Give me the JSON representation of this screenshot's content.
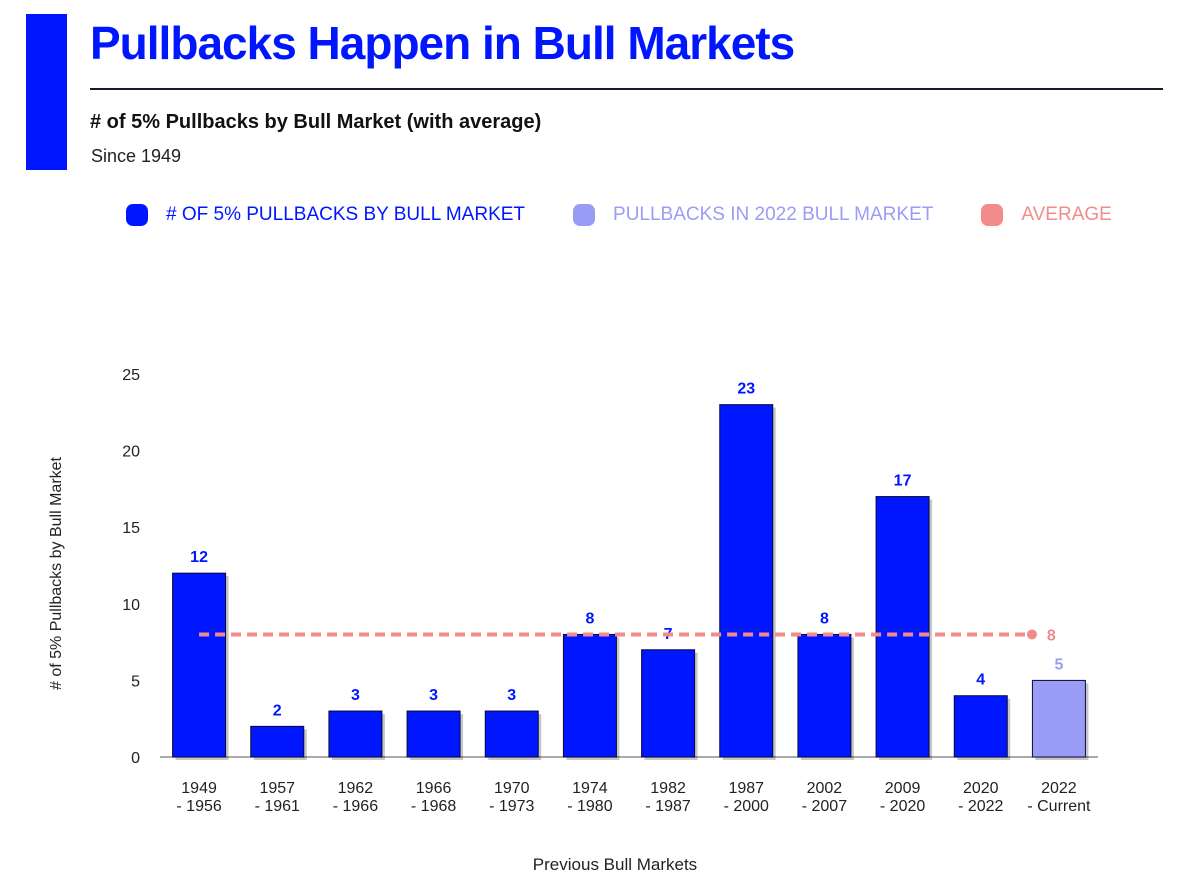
{
  "header": {
    "title": "Pullbacks Happen in Bull Markets",
    "subtitle": "# of 5% Pullbacks by Bull Market (with average)",
    "note": "Since 1949",
    "accent_color": "#0016ff"
  },
  "legend": [
    {
      "label": "# OF 5% PULLBACKS BY BULL MARKET",
      "color": "#0016ff"
    },
    {
      "label": "PULLBACKS IN 2022 BULL MARKET",
      "color": "#9b9cf6"
    },
    {
      "label": "AVERAGE",
      "color": "#f28b8b"
    }
  ],
  "chart_data": {
    "type": "bar",
    "title": "# of 5% Pullbacks by Bull Market (with average)",
    "xlabel": "Previous Bull Markets",
    "ylabel": "# of 5% Pullbacks by Bull Market",
    "ylim": [
      0,
      25
    ],
    "yticks": [
      0,
      5,
      10,
      15,
      20,
      25
    ],
    "categories": [
      [
        "1949",
        "- 1956"
      ],
      [
        "1957",
        "- 1961"
      ],
      [
        "1962",
        "- 1966"
      ],
      [
        "1966",
        "- 1968"
      ],
      [
        "1970",
        "- 1973"
      ],
      [
        "1974",
        "- 1980"
      ],
      [
        "1982",
        "- 1987"
      ],
      [
        "1987",
        "- 2000"
      ],
      [
        "2002",
        "- 2007"
      ],
      [
        "2009",
        "- 2020"
      ],
      [
        "2020",
        "- 2022"
      ],
      [
        "2022",
        "- Current"
      ]
    ],
    "series": [
      {
        "name": "# OF 5% PULLBACKS BY BULL MARKET",
        "color": "#0016ff",
        "values": [
          12,
          2,
          3,
          3,
          3,
          8,
          7,
          23,
          8,
          17,
          4,
          null
        ]
      },
      {
        "name": "PULLBACKS IN 2022 BULL MARKET",
        "color": "#9b9cf6",
        "values": [
          null,
          null,
          null,
          null,
          null,
          null,
          null,
          null,
          null,
          null,
          null,
          5
        ]
      }
    ],
    "average": {
      "name": "AVERAGE",
      "value": 8,
      "label": "8",
      "color": "#f28b8b"
    }
  }
}
